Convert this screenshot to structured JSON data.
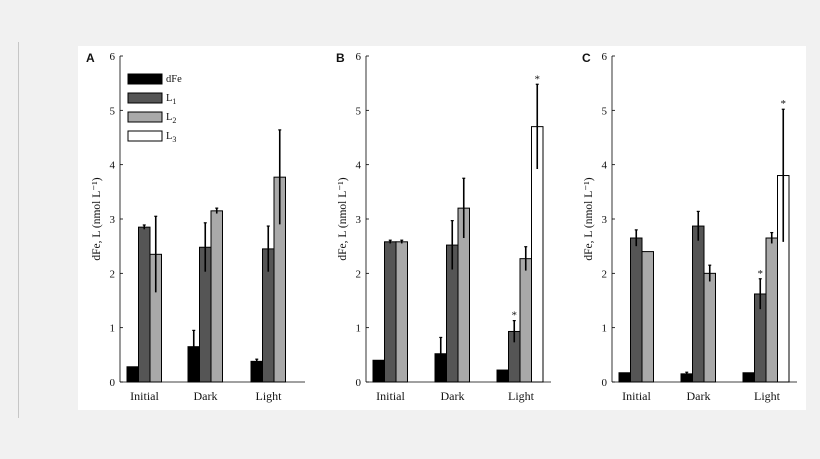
{
  "colors": {
    "dFe": "#000000",
    "L1": "#555555",
    "L2": "#a9a9a9",
    "L3": "#ffffff",
    "axis": "#000000"
  },
  "chart_data": [
    {
      "type": "bar",
      "panel": "A",
      "categories": [
        "Initial",
        "Dark",
        "Light"
      ],
      "ylabel": "dFe, L (nmol L⁻¹)",
      "ylim": [
        0,
        6
      ],
      "yticks": [
        "0",
        "1",
        "2",
        "3",
        "4",
        "5",
        "6"
      ],
      "legend": {
        "placement": "top-left",
        "entries": [
          {
            "key": "dFe",
            "label": "dFe",
            "sub": ""
          },
          {
            "key": "L1",
            "label": "L",
            "sub": "1"
          },
          {
            "key": "L2",
            "label": "L",
            "sub": "2"
          },
          {
            "key": "L3",
            "label": "L",
            "sub": "3"
          }
        ]
      },
      "series": [
        {
          "name": "dFe",
          "key": "dFe",
          "values": [
            0.28,
            0.65,
            0.38
          ],
          "errors": [
            0,
            0.3,
            0.04
          ],
          "stars": [
            false,
            false,
            false
          ]
        },
        {
          "name": "L1",
          "key": "L1",
          "values": [
            2.85,
            2.48,
            2.45
          ],
          "errors": [
            0.04,
            0.45,
            0.42
          ],
          "stars": [
            false,
            false,
            false
          ]
        },
        {
          "name": "L2",
          "key": "L2",
          "values": [
            2.35,
            3.15,
            3.77
          ],
          "errors": [
            0.7,
            0.05,
            0.87
          ],
          "stars": [
            false,
            false,
            false
          ]
        }
      ]
    },
    {
      "type": "bar",
      "panel": "B",
      "categories": [
        "Initial",
        "Dark",
        "Light"
      ],
      "ylabel": "dFe, L (nmol L⁻¹)",
      "ylim": [
        0,
        6
      ],
      "yticks": [
        "0",
        "1",
        "2",
        "3",
        "4",
        "5",
        "6"
      ],
      "series": [
        {
          "name": "dFe",
          "key": "dFe",
          "values": [
            0.4,
            0.52,
            0.22
          ],
          "errors": [
            0,
            0.3,
            0
          ],
          "stars": [
            false,
            false,
            false
          ]
        },
        {
          "name": "L1",
          "key": "L1",
          "values": [
            2.58,
            2.52,
            0.93
          ],
          "errors": [
            0.03,
            0.45,
            0.2
          ],
          "stars": [
            false,
            false,
            true
          ]
        },
        {
          "name": "L2",
          "key": "L2",
          "values": [
            2.58,
            3.2,
            2.27
          ],
          "errors": [
            0.03,
            0.55,
            0.22
          ],
          "stars": [
            false,
            false,
            false
          ]
        },
        {
          "name": "L3",
          "key": "L3",
          "values": [
            null,
            null,
            4.7
          ],
          "errors": [
            0,
            0,
            0.78
          ],
          "stars": [
            false,
            false,
            true
          ]
        }
      ]
    },
    {
      "type": "bar",
      "panel": "C",
      "categories": [
        "Initial",
        "Dark",
        "Light"
      ],
      "ylabel": "dFe, L (nmol L⁻¹)",
      "ylim": [
        0,
        6
      ],
      "yticks": [
        "0",
        "1",
        "2",
        "3",
        "4",
        "5",
        "6"
      ],
      "series": [
        {
          "name": "dFe",
          "key": "dFe",
          "values": [
            0.17,
            0.15,
            0.17
          ],
          "errors": [
            0,
            0.03,
            0
          ],
          "stars": [
            false,
            false,
            false
          ]
        },
        {
          "name": "L1",
          "key": "L1",
          "values": [
            2.65,
            2.87,
            1.62
          ],
          "errors": [
            0.15,
            0.27,
            0.28
          ],
          "stars": [
            false,
            false,
            true
          ]
        },
        {
          "name": "L2",
          "key": "L2",
          "values": [
            2.4,
            2.0,
            2.65
          ],
          "errors": [
            0,
            0.15,
            0.1
          ],
          "stars": [
            false,
            false,
            false
          ]
        },
        {
          "name": "L3",
          "key": "L3",
          "values": [
            null,
            null,
            3.8
          ],
          "errors": [
            0,
            0,
            1.22
          ],
          "stars": [
            false,
            false,
            true
          ]
        }
      ]
    }
  ]
}
